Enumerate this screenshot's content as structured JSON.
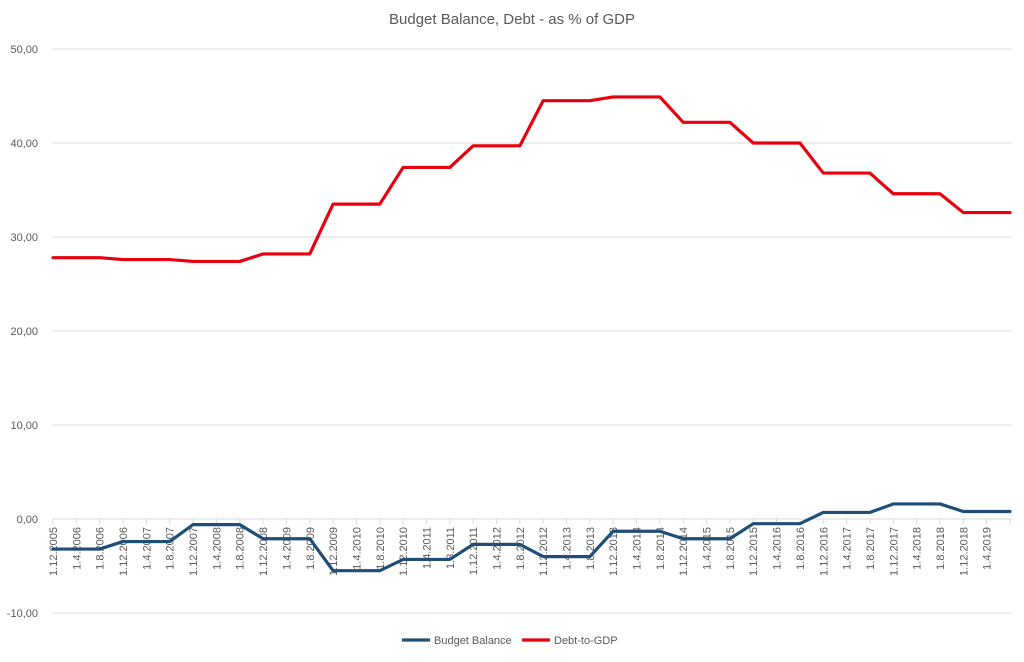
{
  "chart_data": {
    "type": "line",
    "title": "Budget Balance, Debt - as % of GDP",
    "xlabel": "",
    "ylabel": "",
    "ylim": [
      -10,
      50
    ],
    "yticks": [
      "-10,00",
      "0,00",
      "10,00",
      "20,00",
      "30,00",
      "40,00",
      "50,00"
    ],
    "ytick_values": [
      -10,
      0,
      10,
      20,
      30,
      40,
      50
    ],
    "grid": true,
    "legend_position": "bottom",
    "categories": [
      "1.12.2005",
      "1.4.2006",
      "1.8.2006",
      "1.12.2006",
      "1.4.2007",
      "1.8.2007",
      "1.12.2007",
      "1.4.2008",
      "1.8.2008",
      "1.12.2008",
      "1.4.2009",
      "1.8.2009",
      "1.12.2009",
      "1.4.2010",
      "1.8.2010",
      "1.12.2010",
      "1.4.2011",
      "1.8.2011",
      "1.12.2011",
      "1.4.2012",
      "1.8.2012",
      "1.12.2012",
      "1.4.2013",
      "1.8.2013",
      "1.12.2013",
      "1.4.2014",
      "1.8.2014",
      "1.12.2014",
      "1.4.2015",
      "1.8.2015",
      "1.12.2015",
      "1.4.2016",
      "1.8.2016",
      "1.12.2016",
      "1.4.2017",
      "1.8.2017",
      "1.12.2017",
      "1.4.2018",
      "1.8.2018",
      "1.12.2018",
      "1.4.2019",
      ""
    ],
    "series": [
      {
        "name": "Budget Balance",
        "color": "#1F4E79",
        "values": [
          -3.2,
          -3.2,
          -3.2,
          -2.4,
          -2.4,
          -2.4,
          -0.6,
          -0.6,
          -0.6,
          -2.1,
          -2.1,
          -2.1,
          -5.5,
          -5.5,
          -5.5,
          -4.3,
          -4.3,
          -4.3,
          -2.7,
          -2.7,
          -2.7,
          -4.0,
          -4.0,
          -4.0,
          -1.3,
          -1.3,
          -1.3,
          -2.1,
          -2.1,
          -2.1,
          -0.5,
          -0.5,
          -0.5,
          0.7,
          0.7,
          0.7,
          1.6,
          1.6,
          1.6,
          0.8,
          0.8,
          0.8
        ]
      },
      {
        "name": "Debt-to-GDP",
        "color": "#E8000F",
        "values": [
          27.8,
          27.8,
          27.8,
          27.6,
          27.6,
          27.6,
          27.4,
          27.4,
          27.4,
          28.2,
          28.2,
          28.2,
          33.5,
          33.5,
          33.5,
          37.4,
          37.4,
          37.4,
          39.7,
          39.7,
          39.7,
          44.5,
          44.5,
          44.5,
          44.9,
          44.9,
          44.9,
          42.2,
          42.2,
          42.2,
          40.0,
          40.0,
          40.0,
          36.8,
          36.8,
          36.8,
          34.6,
          34.6,
          34.6,
          32.6,
          32.6,
          32.6
        ]
      }
    ]
  }
}
